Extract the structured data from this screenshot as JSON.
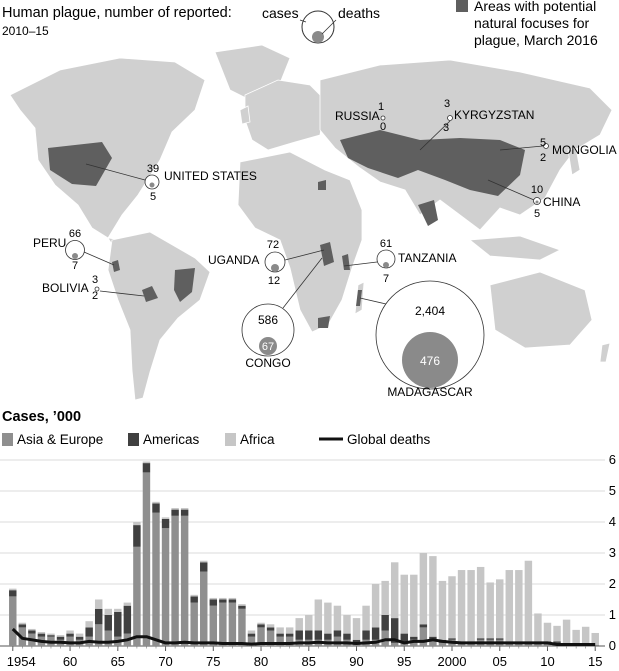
{
  "map": {
    "title": "Human plague, number of reported:",
    "subtitle": "2010–15",
    "key_cases": "cases",
    "key_deaths": "deaths",
    "focus_legend": [
      "Areas with potential",
      "natural focuses for",
      "plague, March 2016"
    ],
    "colors": {
      "land": "#d0d0d0",
      "focus": "#5f5f5f",
      "cases_ring": "#ffffff",
      "deaths_fill": "#8a8a8a"
    },
    "countries": [
      {
        "id": "russia",
        "name": "RUSSIA",
        "cases": "1",
        "deaths": "0"
      },
      {
        "id": "kyrgyzstan",
        "name": "KYRGYZSTAN",
        "cases": "3",
        "deaths": "3"
      },
      {
        "id": "mongolia",
        "name": "MONGOLIA",
        "cases": "5",
        "deaths": "2"
      },
      {
        "id": "china",
        "name": "CHINA",
        "cases": "10",
        "deaths": "5"
      },
      {
        "id": "united-states",
        "name": "UNITED STATES",
        "cases": "39",
        "deaths": "5"
      },
      {
        "id": "peru",
        "name": "PERU",
        "cases": "66",
        "deaths": "7"
      },
      {
        "id": "bolivia",
        "name": "BOLIVIA",
        "cases": "3",
        "deaths": "2"
      },
      {
        "id": "uganda",
        "name": "UGANDA",
        "cases": "72",
        "deaths": "12"
      },
      {
        "id": "tanzania",
        "name": "TANZANIA",
        "cases": "61",
        "deaths": "7"
      },
      {
        "id": "congo",
        "name": "CONGO",
        "cases": "586",
        "deaths": "67"
      },
      {
        "id": "madagascar",
        "name": "MADAGASCAR",
        "cases": "2,404",
        "deaths": "476"
      }
    ]
  },
  "chart_data": {
    "type": "bar",
    "title": "Cases, ’000",
    "stacked": true,
    "ylim": [
      0,
      6
    ],
    "yticks": [
      "0",
      "1",
      "2",
      "3",
      "4",
      "5",
      "6"
    ],
    "xticks": [
      {
        "year": 1954,
        "label": "1954"
      },
      {
        "year": 1960,
        "label": "60"
      },
      {
        "year": 1965,
        "label": "65"
      },
      {
        "year": 1970,
        "label": "70"
      },
      {
        "year": 1975,
        "label": "75"
      },
      {
        "year": 1980,
        "label": "80"
      },
      {
        "year": 1985,
        "label": "85"
      },
      {
        "year": 1990,
        "label": "90"
      },
      {
        "year": 1995,
        "label": "95"
      },
      {
        "year": 2000,
        "label": "2000"
      },
      {
        "year": 2005,
        "label": "05"
      },
      {
        "year": 2010,
        "label": "10"
      },
      {
        "year": 2015,
        "label": "15"
      }
    ],
    "years": [
      1954,
      1955,
      1956,
      1957,
      1958,
      1959,
      1960,
      1961,
      1962,
      1963,
      1964,
      1965,
      1966,
      1967,
      1968,
      1969,
      1970,
      1971,
      1972,
      1973,
      1974,
      1975,
      1976,
      1977,
      1978,
      1979,
      1980,
      1981,
      1982,
      1983,
      1984,
      1985,
      1986,
      1987,
      1988,
      1989,
      1990,
      1991,
      1992,
      1993,
      1994,
      1995,
      1996,
      1997,
      1998,
      1999,
      2000,
      2001,
      2002,
      2003,
      2004,
      2005,
      2006,
      2007,
      2008,
      2009,
      2010,
      2011,
      2012,
      2013,
      2014,
      2015
    ],
    "series": [
      {
        "name": "Asia & Europe",
        "color": "#8f8f8f",
        "values": [
          1.6,
          0.6,
          0.4,
          0.3,
          0.3,
          0.2,
          0.3,
          0.2,
          0.3,
          0.7,
          0.5,
          0.3,
          0.4,
          3.2,
          5.6,
          4.3,
          3.8,
          4.2,
          4.2,
          1.4,
          2.4,
          1.3,
          1.4,
          1.4,
          1.2,
          0.3,
          0.6,
          0.5,
          0.3,
          0.3,
          0.2,
          0.2,
          0.2,
          0.2,
          0.3,
          0.2,
          0.1,
          0.2,
          0.2,
          0.5,
          0.1,
          0.1,
          0.2,
          0.6,
          0.2,
          0.1,
          0.2,
          0.1,
          0.1,
          0.2,
          0.2,
          0.2,
          0.1,
          0.1,
          0.1,
          0.1,
          0.1,
          0.1,
          0.0,
          0.0,
          0.0,
          0.0
        ]
      },
      {
        "name": "Americas",
        "color": "#404040",
        "values": [
          0.2,
          0.1,
          0.1,
          0.1,
          0.05,
          0.1,
          0.1,
          0.1,
          0.3,
          0.5,
          0.5,
          0.8,
          0.9,
          0.7,
          0.3,
          0.3,
          0.3,
          0.2,
          0.2,
          0.2,
          0.3,
          0.2,
          0.1,
          0.1,
          0.1,
          0.1,
          0.1,
          0.1,
          0.1,
          0.1,
          0.3,
          0.3,
          0.3,
          0.2,
          0.2,
          0.2,
          0.1,
          0.3,
          0.4,
          0.5,
          0.8,
          0.3,
          0.1,
          0.1,
          0.1,
          0.1,
          0.05,
          0.05,
          0.05,
          0.05,
          0.05,
          0.05,
          0.05,
          0.05,
          0.05,
          0.05,
          0.05,
          0.05,
          0.05,
          0.02,
          0.02,
          0.02
        ]
      },
      {
        "name": "Africa",
        "color": "#c6c6c6",
        "values": [
          0.05,
          0.05,
          0.05,
          0.05,
          0.05,
          0.05,
          0.1,
          0.1,
          0.2,
          0.3,
          0.2,
          0.1,
          0.1,
          0.1,
          0.05,
          0.05,
          0.05,
          0.05,
          0.05,
          0.05,
          0.05,
          0.05,
          0.05,
          0.05,
          0.05,
          0.1,
          0.05,
          0.1,
          0.2,
          0.2,
          0.4,
          0.5,
          1.0,
          1.0,
          0.8,
          0.6,
          0.7,
          0.8,
          1.4,
          1.1,
          1.8,
          1.9,
          2.0,
          2.3,
          2.6,
          1.9,
          2.0,
          2.3,
          2.3,
          2.3,
          1.8,
          1.9,
          2.3,
          2.3,
          2.6,
          0.9,
          0.6,
          0.5,
          0.8,
          0.5,
          0.6,
          0.4
        ]
      },
      {
        "name": "Global deaths",
        "color": "#111111",
        "kind": "line",
        "values": [
          0.55,
          0.25,
          0.2,
          0.15,
          0.12,
          0.12,
          0.1,
          0.1,
          0.15,
          0.12,
          0.12,
          0.15,
          0.2,
          0.3,
          0.3,
          0.2,
          0.1,
          0.1,
          0.12,
          0.1,
          0.1,
          0.1,
          0.08,
          0.08,
          0.08,
          0.06,
          0.08,
          0.08,
          0.08,
          0.08,
          0.1,
          0.1,
          0.12,
          0.1,
          0.1,
          0.1,
          0.08,
          0.1,
          0.12,
          0.2,
          0.2,
          0.1,
          0.15,
          0.15,
          0.2,
          0.15,
          0.12,
          0.1,
          0.1,
          0.1,
          0.1,
          0.1,
          0.1,
          0.1,
          0.1,
          0.1,
          0.1,
          0.05,
          0.05,
          0.05,
          0.05,
          0.05
        ]
      }
    ]
  }
}
